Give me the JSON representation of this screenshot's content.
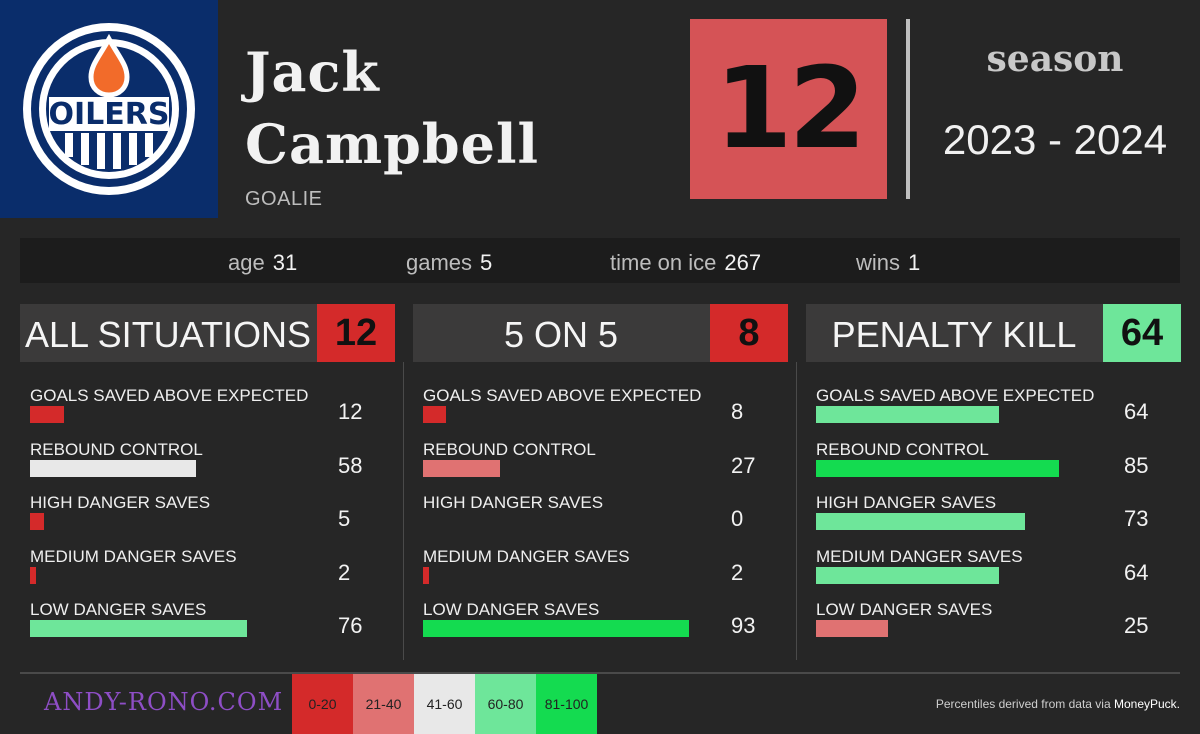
{
  "team": {
    "logo_text": "OILERS"
  },
  "player": {
    "first_name": "Jack",
    "last_name": "Campbell",
    "position": "GOALIE"
  },
  "overall_score": "12",
  "season": {
    "label": "season",
    "years": "2023 - 2024"
  },
  "info": [
    {
      "label": "age",
      "value": "31"
    },
    {
      "label": "games",
      "value": "5"
    },
    {
      "label": "time on ice",
      "value": "267"
    },
    {
      "label": "wins",
      "value": "1"
    }
  ],
  "colors": {
    "bucket_0_20": "#d42a2a",
    "bucket_21_40": "#e07272",
    "bucket_41_60": "#e8e8e8",
    "bucket_61_80": "#6ee69a",
    "bucket_81_100": "#14db50",
    "headline_score": "#d55356"
  },
  "panels": [
    {
      "title": "ALL SITUATIONS",
      "score": "12",
      "score_color": "#d42a2a",
      "metrics": [
        {
          "label": "GOALS SAVED ABOVE EXPECTED",
          "value": "12",
          "percentile": 12,
          "color": "#d42a2a"
        },
        {
          "label": "REBOUND CONTROL",
          "value": "58",
          "percentile": 58,
          "color": "#e8e8e8"
        },
        {
          "label": "HIGH DANGER SAVES",
          "value": "5",
          "percentile": 5,
          "color": "#d42a2a"
        },
        {
          "label": "MEDIUM DANGER SAVES",
          "value": "2",
          "percentile": 2,
          "color": "#d42a2a"
        },
        {
          "label": "LOW DANGER SAVES",
          "value": "76",
          "percentile": 76,
          "color": "#6ee69a"
        }
      ]
    },
    {
      "title": "5 ON 5",
      "score": "8",
      "score_color": "#d42a2a",
      "metrics": [
        {
          "label": "GOALS SAVED ABOVE EXPECTED",
          "value": "8",
          "percentile": 8,
          "color": "#d42a2a"
        },
        {
          "label": "REBOUND CONTROL",
          "value": "27",
          "percentile": 27,
          "color": "#e07272"
        },
        {
          "label": "HIGH DANGER SAVES",
          "value": "0",
          "percentile": 0,
          "color": "#d42a2a"
        },
        {
          "label": "MEDIUM DANGER SAVES",
          "value": "2",
          "percentile": 2,
          "color": "#d42a2a"
        },
        {
          "label": "LOW DANGER SAVES",
          "value": "93",
          "percentile": 93,
          "color": "#14db50"
        }
      ]
    },
    {
      "title": "PENALTY KILL",
      "score": "64",
      "score_color": "#6ee69a",
      "metrics": [
        {
          "label": "GOALS SAVED ABOVE EXPECTED",
          "value": "64",
          "percentile": 64,
          "color": "#6ee69a"
        },
        {
          "label": "REBOUND CONTROL",
          "value": "85",
          "percentile": 85,
          "color": "#14db50"
        },
        {
          "label": "HIGH DANGER SAVES",
          "value": "73",
          "percentile": 73,
          "color": "#6ee69a"
        },
        {
          "label": "MEDIUM DANGER SAVES",
          "value": "64",
          "percentile": 64,
          "color": "#6ee69a"
        },
        {
          "label": "LOW DANGER SAVES",
          "value": "25",
          "percentile": 25,
          "color": "#e07272"
        }
      ]
    }
  ],
  "footer": {
    "site": "ANDY-RONO.COM",
    "legend": [
      {
        "label": "0-20",
        "color": "#d42a2a"
      },
      {
        "label": "21-40",
        "color": "#e07272"
      },
      {
        "label": "41-60",
        "color": "#e8e8e8"
      },
      {
        "label": "60-80",
        "color": "#6ee69a"
      },
      {
        "label": "81-100",
        "color": "#14db50"
      }
    ],
    "source_text": "Percentiles derived from data via",
    "source_name": "MoneyPuck."
  }
}
